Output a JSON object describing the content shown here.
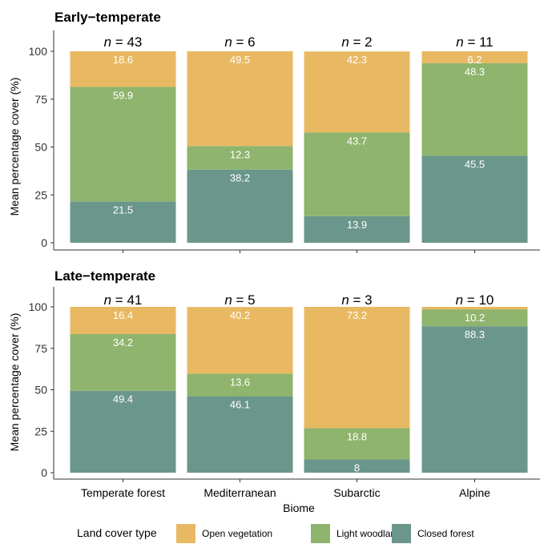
{
  "chart_data": {
    "type": "bar",
    "stacked": true,
    "ylabel": "Mean percentage cover (%)",
    "xlabel": "Biome",
    "ylim": [
      0,
      100
    ],
    "yticks": [
      "0",
      "25",
      "50",
      "75",
      "100"
    ],
    "categories": [
      "Temperate forest",
      "Mediterranean",
      "Subarctic",
      "Alpine"
    ],
    "legend": {
      "title": "Land cover type",
      "position": "bottom",
      "items": [
        {
          "name": "Open vegetation",
          "color": "#E8B962"
        },
        {
          "name": "Light woodland",
          "color": "#8FB46D"
        },
        {
          "name": "Closed forest",
          "color": "#6B968B"
        }
      ]
    },
    "panels": [
      {
        "title": "Early−temperate",
        "n_labels": [
          "n = 43",
          "n = 6",
          "n = 2",
          "n = 11"
        ],
        "series": [
          {
            "name": "Closed forest",
            "values": [
              21.5,
              38.2,
              13.9,
              45.5
            ],
            "labels": [
              "21.5",
              "38.2",
              "13.9",
              "45.5"
            ]
          },
          {
            "name": "Light woodland",
            "values": [
              59.9,
              12.3,
              43.7,
              48.3
            ],
            "labels": [
              "59.9",
              "12.3",
              "43.7",
              "48.3"
            ]
          },
          {
            "name": "Open vegetation",
            "values": [
              18.6,
              49.5,
              42.3,
              6.2
            ],
            "labels": [
              "18.6",
              "49.5",
              "42.3",
              "6.2"
            ]
          }
        ]
      },
      {
        "title": "Late−temperate",
        "n_labels": [
          "n = 41",
          "n = 5",
          "n = 3",
          "n = 10"
        ],
        "series": [
          {
            "name": "Closed forest",
            "values": [
              49.4,
              46.1,
              8,
              88.3
            ],
            "labels": [
              "49.4",
              "46.1",
              "8",
              "88.3"
            ]
          },
          {
            "name": "Light woodland",
            "values": [
              34.2,
              13.6,
              18.8,
              10.2
            ],
            "labels": [
              "34.2",
              "13.6",
              "18.8",
              "10.2"
            ]
          },
          {
            "name": "Open vegetation",
            "values": [
              16.4,
              40.2,
              73.2,
              1.5
            ],
            "labels": [
              "16.4",
              "40.2",
              "73.2",
              ""
            ]
          }
        ]
      }
    ]
  }
}
